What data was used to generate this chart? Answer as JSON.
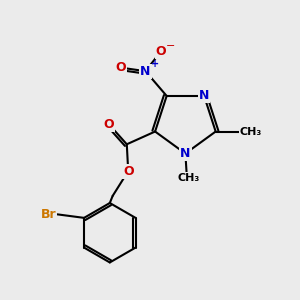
{
  "background_color": "#ebebeb",
  "bond_color": "#000000",
  "bond_width": 1.5,
  "atom_colors": {
    "C": "#000000",
    "N": "#0000cc",
    "O": "#cc0000",
    "Br": "#cc7700"
  },
  "font_size": 9
}
